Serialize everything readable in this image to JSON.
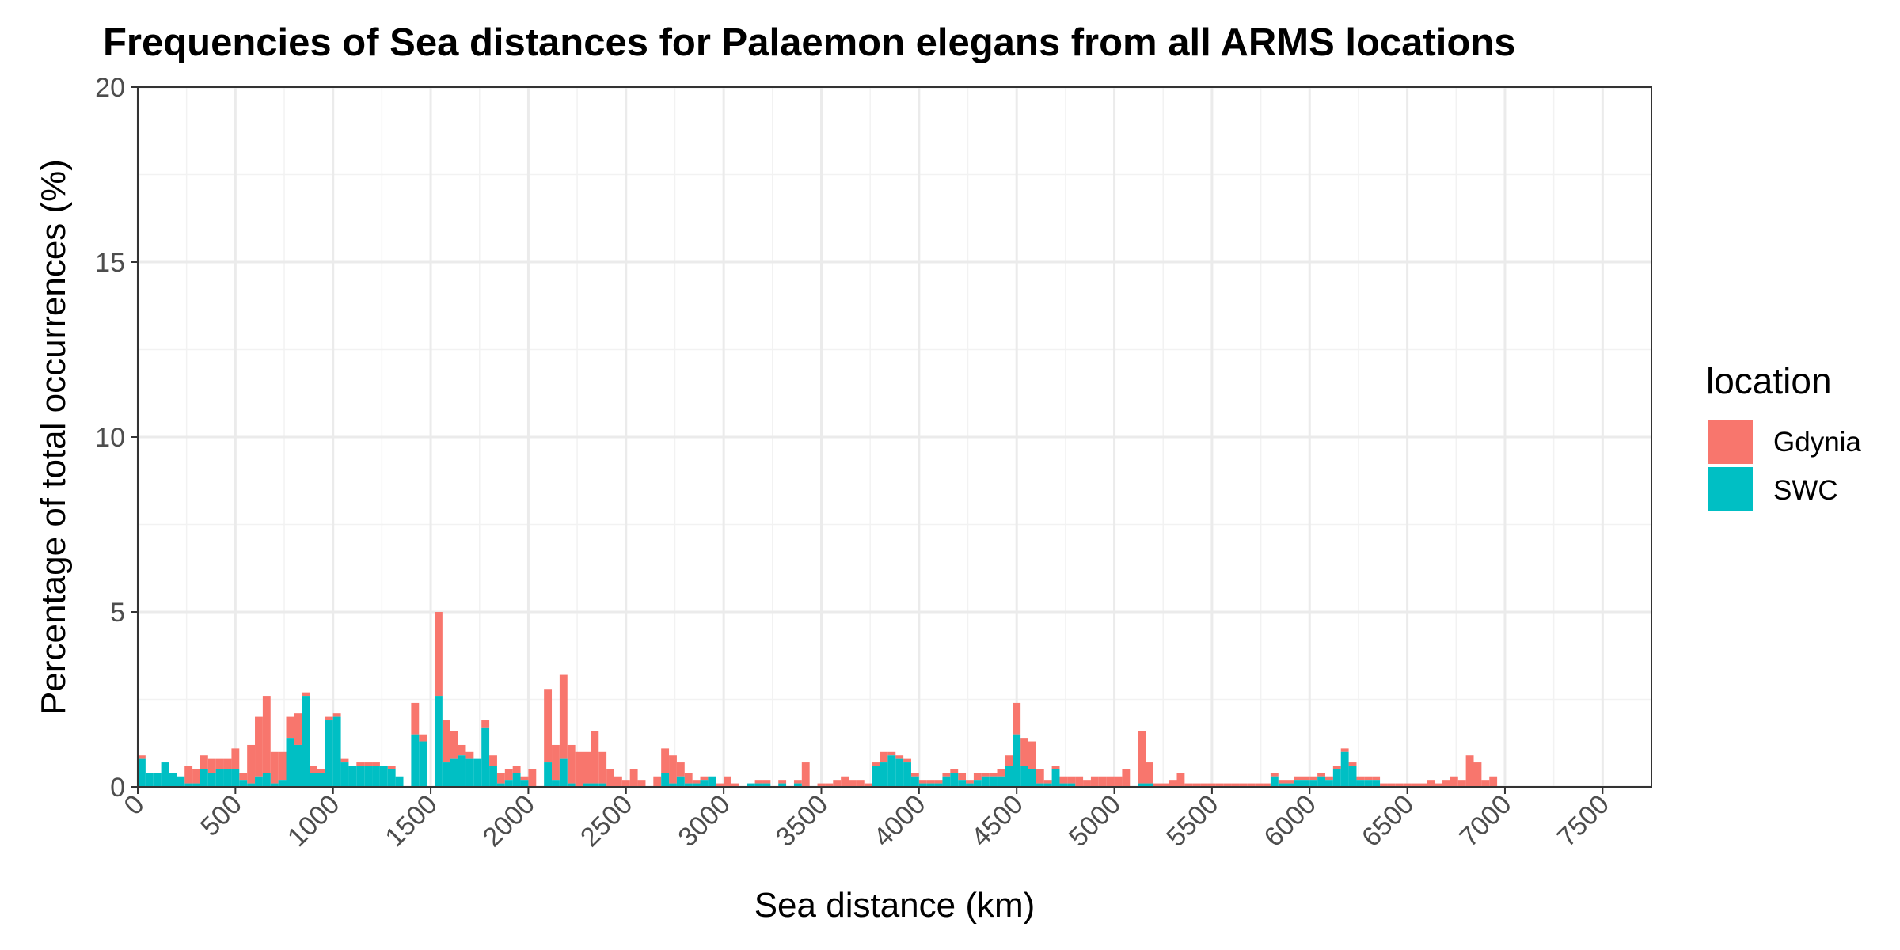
{
  "chart_data": {
    "type": "bar",
    "stacked": true,
    "title": "Frequencies of Sea distances for Palaemon elegans from all ARMS locations",
    "xlabel": "Sea distance (km)",
    "ylabel": "Percentage of total occurrences (%)",
    "xlim": [
      0,
      7750
    ],
    "ylim": [
      0,
      20
    ],
    "x_ticks": [
      0,
      500,
      1000,
      1500,
      2000,
      2500,
      3000,
      3500,
      4000,
      4500,
      5000,
      5500,
      6000,
      6500,
      7000,
      7500
    ],
    "y_ticks": [
      0,
      5,
      10,
      15,
      20
    ],
    "grid": true,
    "legend": {
      "title": "location",
      "position": "right"
    },
    "series": [
      {
        "name": "Gdynia",
        "color": "#F8766D",
        "points": [
          [
            0,
            0.1
          ],
          [
            240,
            0.5
          ],
          [
            280,
            0.4
          ],
          [
            320,
            0.4
          ],
          [
            360,
            0.4
          ],
          [
            400,
            0.3
          ],
          [
            440,
            0.3
          ],
          [
            480,
            0.6
          ],
          [
            520,
            0.2
          ],
          [
            560,
            1.1
          ],
          [
            600,
            1.7
          ],
          [
            640,
            2.2
          ],
          [
            680,
            0.9
          ],
          [
            720,
            0.8
          ],
          [
            760,
            0.6
          ],
          [
            800,
            0.9
          ],
          [
            840,
            0.1
          ],
          [
            880,
            0.2
          ],
          [
            920,
            0.1
          ],
          [
            960,
            0.1
          ],
          [
            1000,
            0.1
          ],
          [
            1040,
            0.1
          ],
          [
            1120,
            0.1
          ],
          [
            1160,
            0.1
          ],
          [
            1200,
            0.1
          ],
          [
            1280,
            0.1
          ],
          [
            1400,
            0.9
          ],
          [
            1440,
            0.2
          ],
          [
            1520,
            2.4
          ],
          [
            1560,
            1.2
          ],
          [
            1600,
            0.8
          ],
          [
            1640,
            0.3
          ],
          [
            1680,
            0.2
          ],
          [
            1760,
            0.2
          ],
          [
            1800,
            0.3
          ],
          [
            1840,
            0.3
          ],
          [
            1880,
            0.3
          ],
          [
            1920,
            0.2
          ],
          [
            1960,
            0.1
          ],
          [
            2000,
            0.5
          ],
          [
            2080,
            2.1
          ],
          [
            2120,
            1.0
          ],
          [
            2160,
            2.4
          ],
          [
            2200,
            1.1
          ],
          [
            2240,
            1.0
          ],
          [
            2280,
            0.9
          ],
          [
            2320,
            1.5
          ],
          [
            2360,
            0.9
          ],
          [
            2400,
            0.5
          ],
          [
            2440,
            0.3
          ],
          [
            2480,
            0.2
          ],
          [
            2520,
            0.5
          ],
          [
            2560,
            0.2
          ],
          [
            2640,
            0.3
          ],
          [
            2680,
            0.7
          ],
          [
            2720,
            0.8
          ],
          [
            2760,
            0.4
          ],
          [
            2800,
            0.3
          ],
          [
            2840,
            0.1
          ],
          [
            2880,
            0.1
          ],
          [
            2960,
            0.1
          ],
          [
            3000,
            0.3
          ],
          [
            3040,
            0.1
          ],
          [
            3160,
            0.1
          ],
          [
            3200,
            0.1
          ],
          [
            3280,
            0.1
          ],
          [
            3360,
            0.1
          ],
          [
            3400,
            0.7
          ],
          [
            3480,
            0.1
          ],
          [
            3520,
            0.1
          ],
          [
            3560,
            0.2
          ],
          [
            3600,
            0.3
          ],
          [
            3640,
            0.2
          ],
          [
            3680,
            0.2
          ],
          [
            3720,
            0.1
          ],
          [
            3760,
            0.1
          ],
          [
            3800,
            0.3
          ],
          [
            3840,
            0.1
          ],
          [
            3880,
            0.1
          ],
          [
            3920,
            0.1
          ],
          [
            3960,
            0.1
          ],
          [
            4000,
            0.1
          ],
          [
            4040,
            0.1
          ],
          [
            4080,
            0.1
          ],
          [
            4120,
            0.1
          ],
          [
            4160,
            0.1
          ],
          [
            4200,
            0.2
          ],
          [
            4240,
            0.1
          ],
          [
            4280,
            0.2
          ],
          [
            4320,
            0.1
          ],
          [
            4360,
            0.1
          ],
          [
            4400,
            0.2
          ],
          [
            4440,
            0.3
          ],
          [
            4480,
            0.9
          ],
          [
            4520,
            0.8
          ],
          [
            4560,
            0.8
          ],
          [
            4600,
            0.4
          ],
          [
            4640,
            0.1
          ],
          [
            4680,
            0.1
          ],
          [
            4720,
            0.2
          ],
          [
            4760,
            0.2
          ],
          [
            4800,
            0.3
          ],
          [
            4840,
            0.2
          ],
          [
            4880,
            0.3
          ],
          [
            4920,
            0.3
          ],
          [
            4960,
            0.3
          ],
          [
            5000,
            0.3
          ],
          [
            5040,
            0.5
          ],
          [
            5120,
            1.5
          ],
          [
            5160,
            0.6
          ],
          [
            5200,
            0.1
          ],
          [
            5240,
            0.1
          ],
          [
            5280,
            0.2
          ],
          [
            5320,
            0.4
          ],
          [
            5360,
            0.1
          ],
          [
            5400,
            0.1
          ],
          [
            5440,
            0.1
          ],
          [
            5480,
            0.1
          ],
          [
            5520,
            0.1
          ],
          [
            5560,
            0.1
          ],
          [
            5600,
            0.1
          ],
          [
            5640,
            0.1
          ],
          [
            5680,
            0.1
          ],
          [
            5720,
            0.1
          ],
          [
            5760,
            0.1
          ],
          [
            5800,
            0.1
          ],
          [
            5840,
            0.1
          ],
          [
            5880,
            0.1
          ],
          [
            5920,
            0.1
          ],
          [
            5960,
            0.1
          ],
          [
            6000,
            0.1
          ],
          [
            6040,
            0.1
          ],
          [
            6080,
            0.1
          ],
          [
            6120,
            0.1
          ],
          [
            6160,
            0.1
          ],
          [
            6200,
            0.1
          ],
          [
            6240,
            0.1
          ],
          [
            6280,
            0.1
          ],
          [
            6320,
            0.1
          ],
          [
            6360,
            0.1
          ],
          [
            6400,
            0.1
          ],
          [
            6440,
            0.1
          ],
          [
            6480,
            0.1
          ],
          [
            6520,
            0.1
          ],
          [
            6560,
            0.1
          ],
          [
            6600,
            0.2
          ],
          [
            6640,
            0.1
          ],
          [
            6680,
            0.2
          ],
          [
            6720,
            0.3
          ],
          [
            6760,
            0.2
          ],
          [
            6800,
            0.9
          ],
          [
            6840,
            0.7
          ],
          [
            6880,
            0.2
          ],
          [
            6920,
            0.3
          ]
        ]
      },
      {
        "name": "SWC",
        "color": "#00BFC4",
        "points": [
          [
            0,
            0.8
          ],
          [
            40,
            0.4
          ],
          [
            80,
            0.4
          ],
          [
            120,
            0.7
          ],
          [
            160,
            0.4
          ],
          [
            200,
            0.3
          ],
          [
            240,
            0.1
          ],
          [
            280,
            0.1
          ],
          [
            320,
            0.5
          ],
          [
            360,
            0.4
          ],
          [
            400,
            0.5
          ],
          [
            440,
            0.5
          ],
          [
            480,
            0.5
          ],
          [
            520,
            0.2
          ],
          [
            560,
            0.1
          ],
          [
            600,
            0.3
          ],
          [
            640,
            0.4
          ],
          [
            680,
            0.1
          ],
          [
            720,
            0.2
          ],
          [
            760,
            1.4
          ],
          [
            800,
            1.2
          ],
          [
            840,
            2.6
          ],
          [
            880,
            0.4
          ],
          [
            920,
            0.4
          ],
          [
            960,
            1.9
          ],
          [
            1000,
            2.0
          ],
          [
            1040,
            0.7
          ],
          [
            1080,
            0.6
          ],
          [
            1120,
            0.6
          ],
          [
            1160,
            0.6
          ],
          [
            1200,
            0.6
          ],
          [
            1240,
            0.6
          ],
          [
            1280,
            0.5
          ],
          [
            1320,
            0.3
          ],
          [
            1400,
            1.5
          ],
          [
            1440,
            1.3
          ],
          [
            1520,
            2.6
          ],
          [
            1560,
            0.7
          ],
          [
            1600,
            0.8
          ],
          [
            1640,
            0.9
          ],
          [
            1680,
            0.8
          ],
          [
            1720,
            0.8
          ],
          [
            1760,
            1.7
          ],
          [
            1800,
            0.6
          ],
          [
            1840,
            0.1
          ],
          [
            1880,
            0.2
          ],
          [
            1920,
            0.4
          ],
          [
            1960,
            0.2
          ],
          [
            2080,
            0.7
          ],
          [
            2120,
            0.2
          ],
          [
            2160,
            0.8
          ],
          [
            2200,
            0.1
          ],
          [
            2280,
            0.1
          ],
          [
            2320,
            0.1
          ],
          [
            2360,
            0.1
          ],
          [
            2680,
            0.4
          ],
          [
            2720,
            0.1
          ],
          [
            2760,
            0.3
          ],
          [
            2800,
            0.1
          ],
          [
            2840,
            0.1
          ],
          [
            2880,
            0.2
          ],
          [
            2920,
            0.3
          ],
          [
            3120,
            0.1
          ],
          [
            3160,
            0.1
          ],
          [
            3200,
            0.1
          ],
          [
            3280,
            0.1
          ],
          [
            3360,
            0.1
          ],
          [
            3760,
            0.6
          ],
          [
            3800,
            0.7
          ],
          [
            3840,
            0.9
          ],
          [
            3880,
            0.8
          ],
          [
            3920,
            0.7
          ],
          [
            3960,
            0.3
          ],
          [
            4000,
            0.1
          ],
          [
            4040,
            0.1
          ],
          [
            4080,
            0.1
          ],
          [
            4120,
            0.3
          ],
          [
            4160,
            0.4
          ],
          [
            4200,
            0.2
          ],
          [
            4240,
            0.1
          ],
          [
            4280,
            0.2
          ],
          [
            4320,
            0.3
          ],
          [
            4360,
            0.3
          ],
          [
            4400,
            0.3
          ],
          [
            4440,
            0.6
          ],
          [
            4480,
            1.5
          ],
          [
            4520,
            0.6
          ],
          [
            4560,
            0.5
          ],
          [
            4600,
            0.1
          ],
          [
            4640,
            0.1
          ],
          [
            4680,
            0.5
          ],
          [
            4720,
            0.1
          ],
          [
            4760,
            0.1
          ],
          [
            5120,
            0.1
          ],
          [
            5160,
            0.1
          ],
          [
            5800,
            0.3
          ],
          [
            5840,
            0.1
          ],
          [
            5880,
            0.1
          ],
          [
            5920,
            0.2
          ],
          [
            5960,
            0.2
          ],
          [
            6000,
            0.2
          ],
          [
            6040,
            0.3
          ],
          [
            6080,
            0.2
          ],
          [
            6120,
            0.5
          ],
          [
            6160,
            1.0
          ],
          [
            6200,
            0.6
          ],
          [
            6240,
            0.2
          ],
          [
            6280,
            0.2
          ],
          [
            6320,
            0.2
          ]
        ]
      }
    ]
  }
}
